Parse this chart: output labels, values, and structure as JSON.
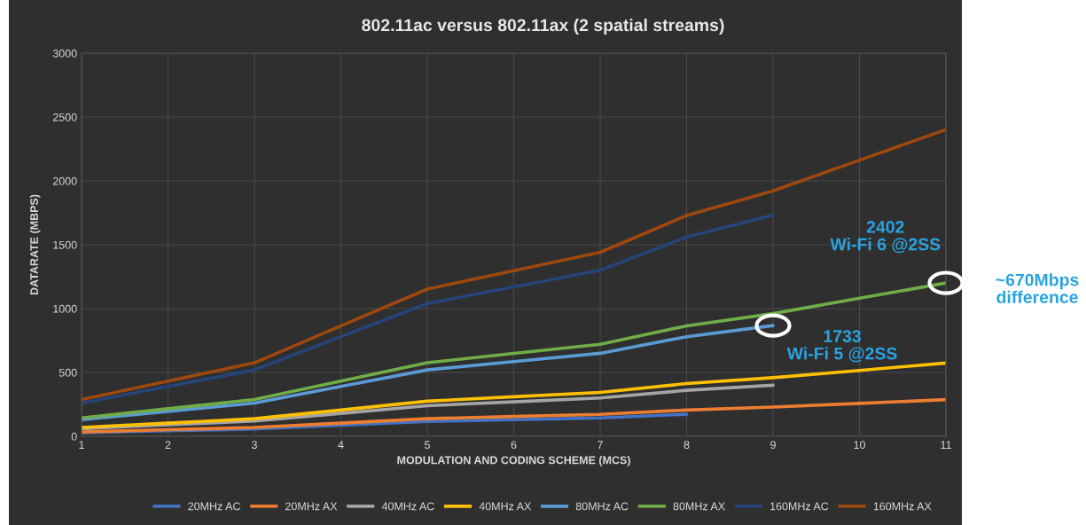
{
  "chart_data": {
    "type": "line",
    "title": "802.11ac versus 802.11ax (2 spatial streams)",
    "xlabel": "MODULATION AND CODING SCHEME (MCS)",
    "ylabel": "DATARATE (MBPS)",
    "x": [
      1,
      2,
      3,
      4,
      5,
      6,
      7,
      8,
      9,
      10,
      11
    ],
    "series": [
      {
        "name": "20MHz AC",
        "color": "#4472c4",
        "values": [
          29,
          43,
          58,
          87,
          116,
          130,
          144,
          173,
          null,
          null,
          null
        ]
      },
      {
        "name": "20MHz AX",
        "color": "#ed7d31",
        "values": [
          34,
          52,
          69,
          103,
          138,
          155,
          172,
          206,
          229,
          258,
          287
        ]
      },
      {
        "name": "40MHz AC",
        "color": "#a5a5a5",
        "values": [
          60,
          90,
          120,
          180,
          240,
          270,
          300,
          360,
          400,
          null,
          null
        ]
      },
      {
        "name": "40MHz AX",
        "color": "#ffc000",
        "values": [
          69,
          103,
          138,
          206,
          275,
          310,
          344,
          413,
          459,
          516,
          574
        ]
      },
      {
        "name": "80MHz AC",
        "color": "#5b9bd5",
        "values": [
          130,
          195,
          260,
          390,
          520,
          585,
          650,
          780,
          867,
          null,
          null
        ]
      },
      {
        "name": "80MHz AX",
        "color": "#70ad47",
        "values": [
          144,
          216,
          288,
          432,
          576,
          649,
          721,
          865,
          961,
          1081,
          1201
        ]
      },
      {
        "name": "160MHz AC",
        "color": "#264478",
        "values": [
          260,
          390,
          520,
          780,
          1040,
          1170,
          1300,
          1560,
          1733,
          null,
          null
        ]
      },
      {
        "name": "160MHz AX",
        "color": "#9e480e",
        "values": [
          288,
          432,
          576,
          865,
          1153,
          1297,
          1441,
          1729,
          1922,
          2162,
          2402
        ]
      }
    ],
    "xlim": [
      1,
      11
    ],
    "xticks": [
      1,
      2,
      3,
      4,
      5,
      6,
      7,
      8,
      9,
      10,
      11
    ],
    "ylim": [
      0,
      3000
    ],
    "yticks": [
      0,
      500,
      1000,
      1500,
      2000,
      2500,
      3000
    ],
    "grid": true,
    "legend": "bottom",
    "marker": "none",
    "line_style": "solid",
    "annotations": [
      "2402\nWi-Fi 6 @2SS",
      "1733\nWi-Fi 5 @2SS",
      "~670Mbps\ndifference"
    ]
  }
}
